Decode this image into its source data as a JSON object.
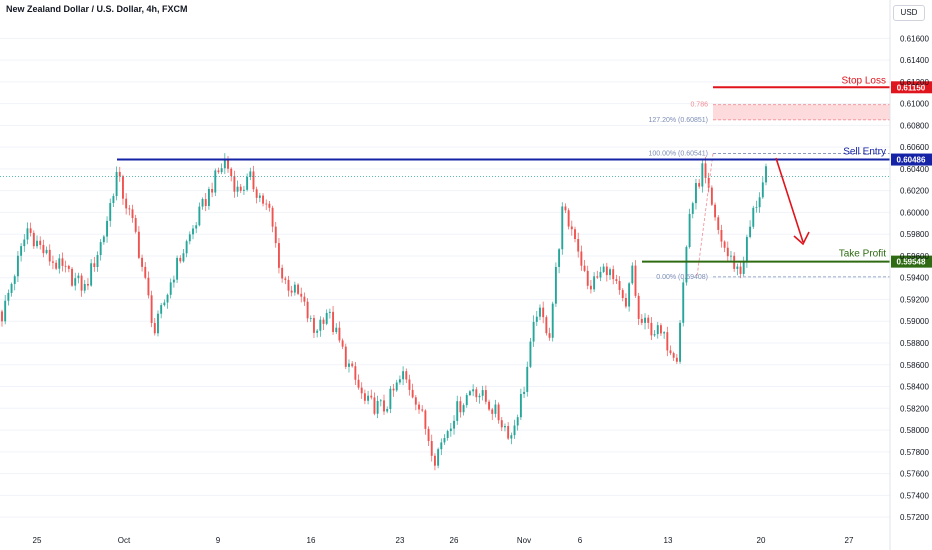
{
  "header": {
    "title": "New Zealand Dollar / U.S. Dollar, 4h, FXCM",
    "currency": "USD"
  },
  "colors": {
    "up": "#26a69a",
    "down": "#ef5350",
    "resistance": "#1523a6",
    "stop": "#e0141c",
    "takeprofit": "#2e6b12",
    "fib": "#7c8db5",
    "arrow": "#e0141c"
  },
  "chart_data": {
    "type": "candlestick",
    "ylim": [
      0.571,
      0.6175
    ],
    "yticks": [
      "0.61600",
      "0.61400",
      "0.61200",
      "0.61000",
      "0.60800",
      "0.60600",
      "0.60400",
      "0.60200",
      "0.60000",
      "0.59800",
      "0.59600",
      "0.59400",
      "0.59200",
      "0.59000",
      "0.58800",
      "0.58600",
      "0.58400",
      "0.58200",
      "0.58000",
      "0.57800",
      "0.57600",
      "0.57400",
      "0.57200"
    ],
    "xticks": [
      "25",
      "Oct",
      "9",
      "16",
      "23",
      "26",
      "Nov",
      "6",
      "13",
      "20",
      "27"
    ],
    "last_price": 0.6033,
    "anchors": [
      {
        "bar": 0,
        "price": 0.5905
      },
      {
        "bar": 5,
        "price": 0.5955
      },
      {
        "bar": 8,
        "price": 0.5985
      },
      {
        "bar": 14,
        "price": 0.596
      },
      {
        "bar": 20,
        "price": 0.5945
      },
      {
        "bar": 26,
        "price": 0.593
      },
      {
        "bar": 32,
        "price": 0.598
      },
      {
        "bar": 36,
        "price": 0.6035
      },
      {
        "bar": 42,
        "price": 0.598
      },
      {
        "bar": 48,
        "price": 0.589
      },
      {
        "bar": 54,
        "price": 0.5945
      },
      {
        "bar": 60,
        "price": 0.5985
      },
      {
        "bar": 66,
        "price": 0.6025
      },
      {
        "bar": 70,
        "price": 0.6048
      },
      {
        "bar": 74,
        "price": 0.602
      },
      {
        "bar": 78,
        "price": 0.603
      },
      {
        "bar": 84,
        "price": 0.6
      },
      {
        "bar": 88,
        "price": 0.594
      },
      {
        "bar": 94,
        "price": 0.592
      },
      {
        "bar": 98,
        "price": 0.589
      },
      {
        "bar": 102,
        "price": 0.591
      },
      {
        "bar": 108,
        "price": 0.5865
      },
      {
        "bar": 114,
        "price": 0.5825
      },
      {
        "bar": 120,
        "price": 0.582
      },
      {
        "bar": 126,
        "price": 0.585
      },
      {
        "bar": 130,
        "price": 0.583
      },
      {
        "bar": 136,
        "price": 0.5775
      },
      {
        "bar": 142,
        "price": 0.5815
      },
      {
        "bar": 148,
        "price": 0.584
      },
      {
        "bar": 154,
        "price": 0.582
      },
      {
        "bar": 160,
        "price": 0.5795
      },
      {
        "bar": 164,
        "price": 0.584
      },
      {
        "bar": 168,
        "price": 0.591
      },
      {
        "bar": 172,
        "price": 0.589
      },
      {
        "bar": 176,
        "price": 0.6
      },
      {
        "bar": 180,
        "price": 0.598
      },
      {
        "bar": 184,
        "price": 0.593
      },
      {
        "bar": 190,
        "price": 0.595
      },
      {
        "bar": 196,
        "price": 0.591
      },
      {
        "bar": 198,
        "price": 0.595
      },
      {
        "bar": 200,
        "price": 0.59
      },
      {
        "bar": 206,
        "price": 0.589
      },
      {
        "bar": 212,
        "price": 0.587
      },
      {
        "bar": 216,
        "price": 0.6
      },
      {
        "bar": 220,
        "price": 0.604
      },
      {
        "bar": 224,
        "price": 0.599
      },
      {
        "bar": 228,
        "price": 0.596
      },
      {
        "bar": 232,
        "price": 0.5945
      },
      {
        "bar": 236,
        "price": 0.6
      },
      {
        "bar": 240,
        "price": 0.6035
      }
    ],
    "levels": [
      {
        "name": "Stop Loss",
        "price": 0.6115,
        "label": "0.61150",
        "color_key": "stop"
      },
      {
        "name": "Sell Entry",
        "price": 0.60486,
        "label": "0.60486",
        "color_key": "resistance"
      },
      {
        "name": "Take Profit",
        "price": 0.59548,
        "label": "0.59548",
        "color_key": "takeprofit"
      }
    ],
    "fib": {
      "levels": [
        {
          "label": "0.786",
          "price": 0.6099
        },
        {
          "label": "127.20% (0.60851)",
          "price": 0.60851
        },
        {
          "label": "100.00% (0.60541)",
          "price": 0.60541
        },
        {
          "label": "0.00% (0.59408)",
          "price": 0.59408
        }
      ]
    },
    "annotations": {
      "stop_label": "Stop Loss",
      "entry_label": "Sell Entry",
      "tp_label": "Take Profit"
    }
  }
}
